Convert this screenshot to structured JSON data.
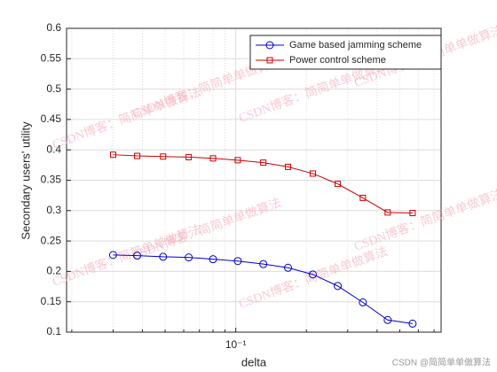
{
  "chart_data": {
    "type": "line",
    "xlabel": "delta",
    "ylabel": "Secondary users' utility",
    "x": [
      0.03,
      0.038,
      0.049,
      0.063,
      0.08,
      0.102,
      0.131,
      0.167,
      0.213,
      0.272,
      0.348,
      0.444,
      0.567
    ],
    "series": [
      {
        "name": "Game based jamming scheme",
        "color": "#0000cc",
        "marker": "circle",
        "values": [
          0.227,
          0.226,
          0.224,
          0.223,
          0.22,
          0.217,
          0.212,
          0.206,
          0.195,
          0.176,
          0.149,
          0.12,
          0.114
        ]
      },
      {
        "name": "Power control scheme",
        "color": "#cc0000",
        "marker": "square",
        "values": [
          0.392,
          0.39,
          0.389,
          0.388,
          0.386,
          0.383,
          0.379,
          0.372,
          0.361,
          0.344,
          0.321,
          0.297,
          0.296
        ]
      }
    ],
    "xscale": "log",
    "xlim": [
      0.019,
      0.75
    ],
    "xticks": [
      {
        "value": 0.1,
        "label": "10⁻¹"
      }
    ],
    "xminorticks": [
      0.02,
      0.03,
      0.04,
      0.05,
      0.06,
      0.07,
      0.08,
      0.09,
      0.2,
      0.3,
      0.4,
      0.5,
      0.6,
      0.7
    ],
    "ylim": [
      0.1,
      0.6
    ],
    "yticks": [
      0.1,
      0.15,
      0.2,
      0.25,
      0.3,
      0.35,
      0.4,
      0.45,
      0.5,
      0.55,
      0.6
    ],
    "grid": true,
    "legend": "upper right",
    "watermark": "CSDN博客：简简单单做算法",
    "credit": "CSDN @简简单单做算法"
  }
}
